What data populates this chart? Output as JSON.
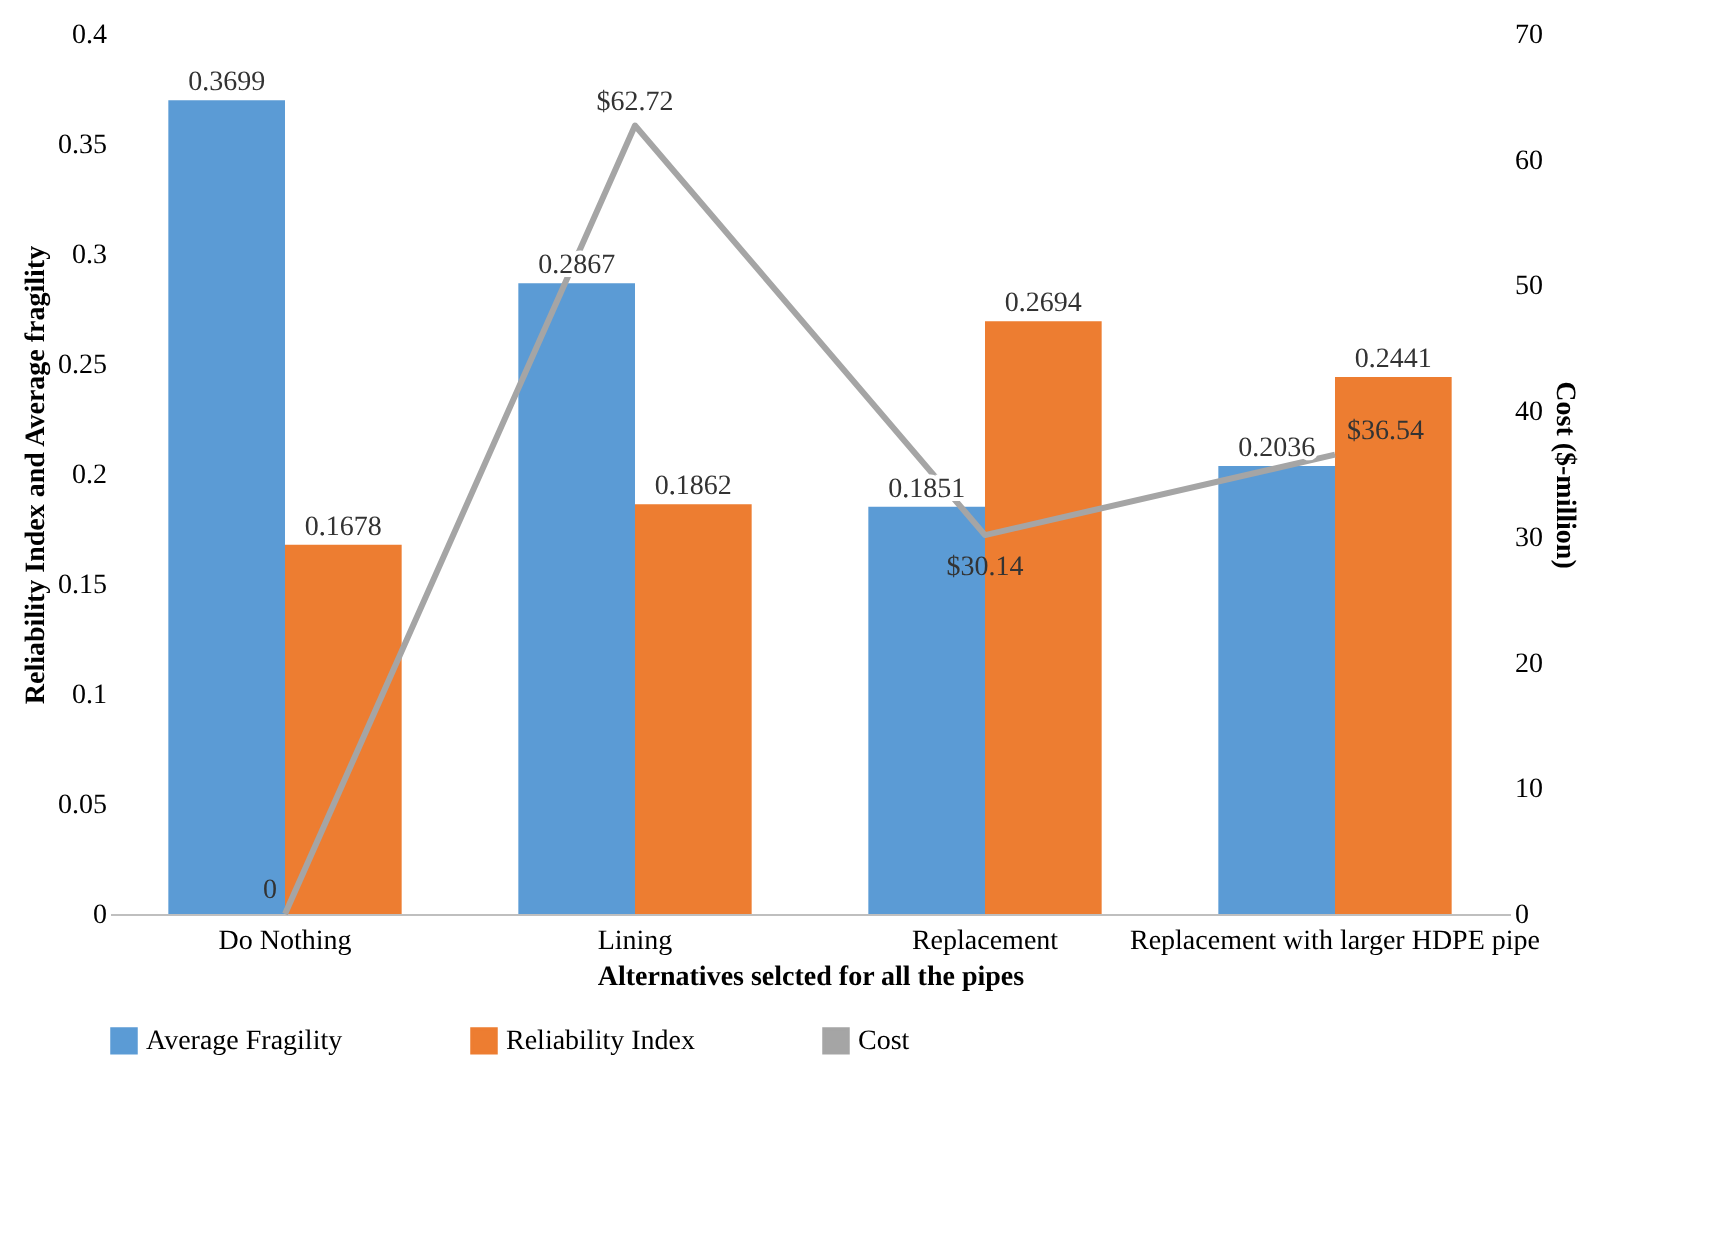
{
  "chart_data": {
    "type": "bar",
    "xlabel": "Alternatives selcted for all the pipes",
    "ylabel": "Reliability Index and Average fragility",
    "y2label": "Cost ($-million)",
    "categories": [
      "Do Nothing",
      "Lining",
      "Replacement",
      "Replacement with larger HDPE pipe"
    ],
    "series": [
      {
        "name": "Average Fragility",
        "color": "#5b9bd5",
        "values": [
          0.3699,
          0.2867,
          0.1851,
          0.2036
        ]
      },
      {
        "name": "Reliability Index",
        "color": "#ed7d31",
        "values": [
          0.1678,
          0.1862,
          0.2694,
          0.2441
        ]
      },
      {
        "name": "Cost",
        "type": "line",
        "axis": "y2",
        "color": "#a5a5a5",
        "values": [
          0,
          62.72,
          30.14,
          36.54
        ],
        "value_labels": [
          "0",
          "$62.72",
          "$30.14",
          "$36.54"
        ]
      }
    ],
    "data_labels": true,
    "ylim": [
      0,
      0.4
    ],
    "yticks": [
      0,
      0.05,
      0.1,
      0.15,
      0.2,
      0.25,
      0.3,
      0.35,
      0.4
    ],
    "y2lim": [
      0,
      70
    ],
    "y2ticks": [
      0,
      10,
      20,
      30,
      40,
      50,
      60,
      70
    ],
    "legend": "bottom"
  }
}
